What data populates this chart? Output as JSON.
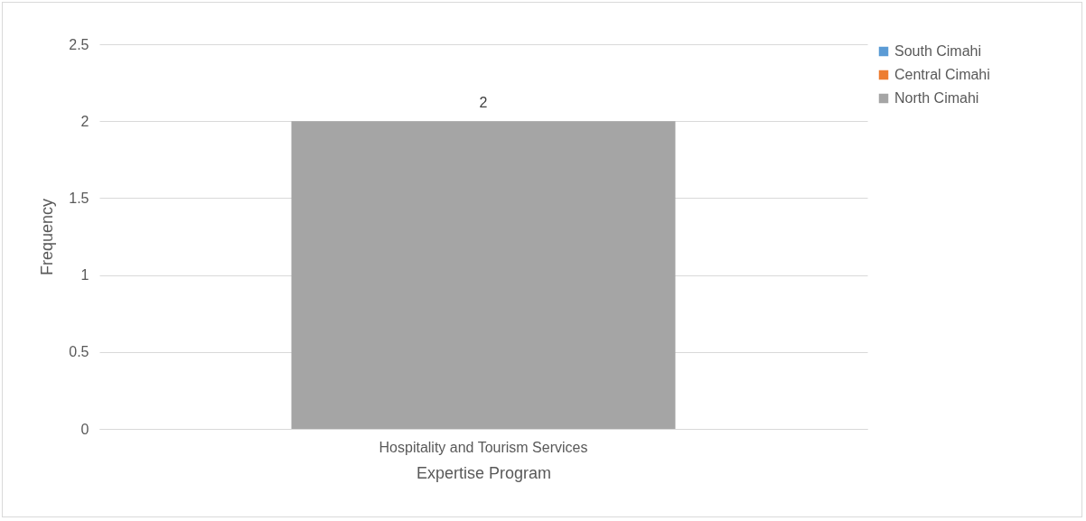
{
  "chart_data": {
    "type": "bar",
    "xlabel": "Expertise Program",
    "ylabel": "Frequency",
    "categories": [
      "Hospitality and Tourism Services"
    ],
    "series": [
      {
        "name": "South Cimahi",
        "color": "#5b9bd5",
        "values": [
          null
        ]
      },
      {
        "name": "Central Cimahi",
        "color": "#ed7d31",
        "values": [
          null
        ]
      },
      {
        "name": "North Cimahi",
        "color": "#a5a5a5",
        "values": [
          2
        ]
      }
    ],
    "ylim": [
      0,
      2.5
    ],
    "yticks": [
      0,
      0.5,
      1,
      1.5,
      2,
      2.5
    ],
    "grid": "y",
    "legend": "right",
    "data_labels": true
  }
}
